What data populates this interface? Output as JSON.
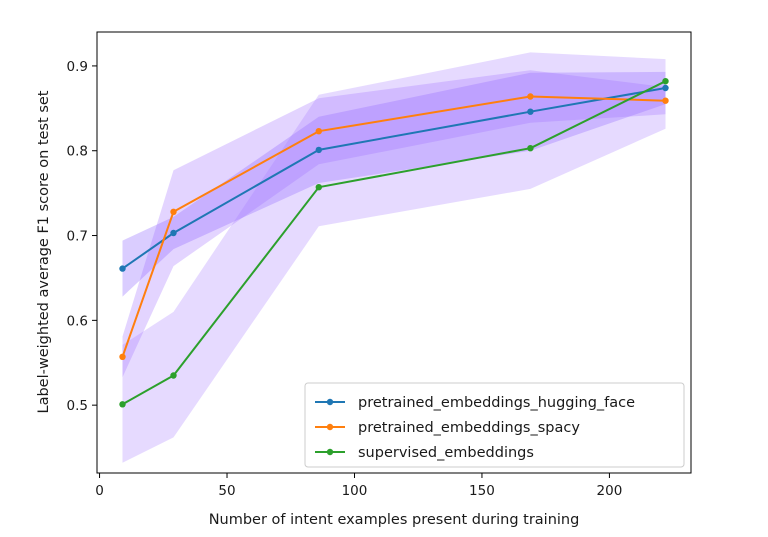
{
  "chart_data": {
    "type": "line",
    "title": "",
    "xlabel": "Number of intent examples present during training",
    "ylabel": "Label-weighted average F1 score on test set",
    "xlim": [
      -1,
      232
    ],
    "ylim": [
      0.42,
      0.94
    ],
    "xticks": [
      0,
      50,
      100,
      150,
      200
    ],
    "xtick_labels": [
      "0",
      "50",
      "100",
      "150",
      "200"
    ],
    "yticks": [
      0.5,
      0.6,
      0.7,
      0.8,
      0.9
    ],
    "ytick_labels": [
      "0.5",
      "0.6",
      "0.7",
      "0.8",
      "0.9"
    ],
    "grid": false,
    "legend_position": "lower-right",
    "x": [
      9,
      29,
      86,
      169,
      222
    ],
    "series": [
      {
        "name": "pretrained_embeddings_hugging_face",
        "color": "#1f77b4",
        "values": [
          0.661,
          0.703,
          0.801,
          0.846,
          0.874
        ],
        "band_color": "#7b4dff",
        "band_lower": [
          0.628,
          0.684,
          0.762,
          0.8,
          0.855
        ],
        "band_upper": [
          0.694,
          0.722,
          0.84,
          0.892,
          0.893
        ]
      },
      {
        "name": "pretrained_embeddings_spacy",
        "color": "#ff7f0e",
        "values": [
          0.557,
          0.728,
          0.823,
          0.864,
          0.859
        ],
        "band_color": "#9966ff",
        "band_lower": [
          0.533,
          0.664,
          0.784,
          0.833,
          0.843
        ],
        "band_upper": [
          0.581,
          0.777,
          0.862,
          0.895,
          0.875
        ]
      },
      {
        "name": "supervised_embeddings",
        "color": "#2ca02c",
        "values": [
          0.501,
          0.535,
          0.757,
          0.803,
          0.882
        ],
        "band_color": "#a77bff",
        "band_lower": [
          0.432,
          0.462,
          0.711,
          0.755,
          0.826
        ],
        "band_upper": [
          0.571,
          0.61,
          0.866,
          0.916,
          0.908
        ]
      }
    ]
  }
}
